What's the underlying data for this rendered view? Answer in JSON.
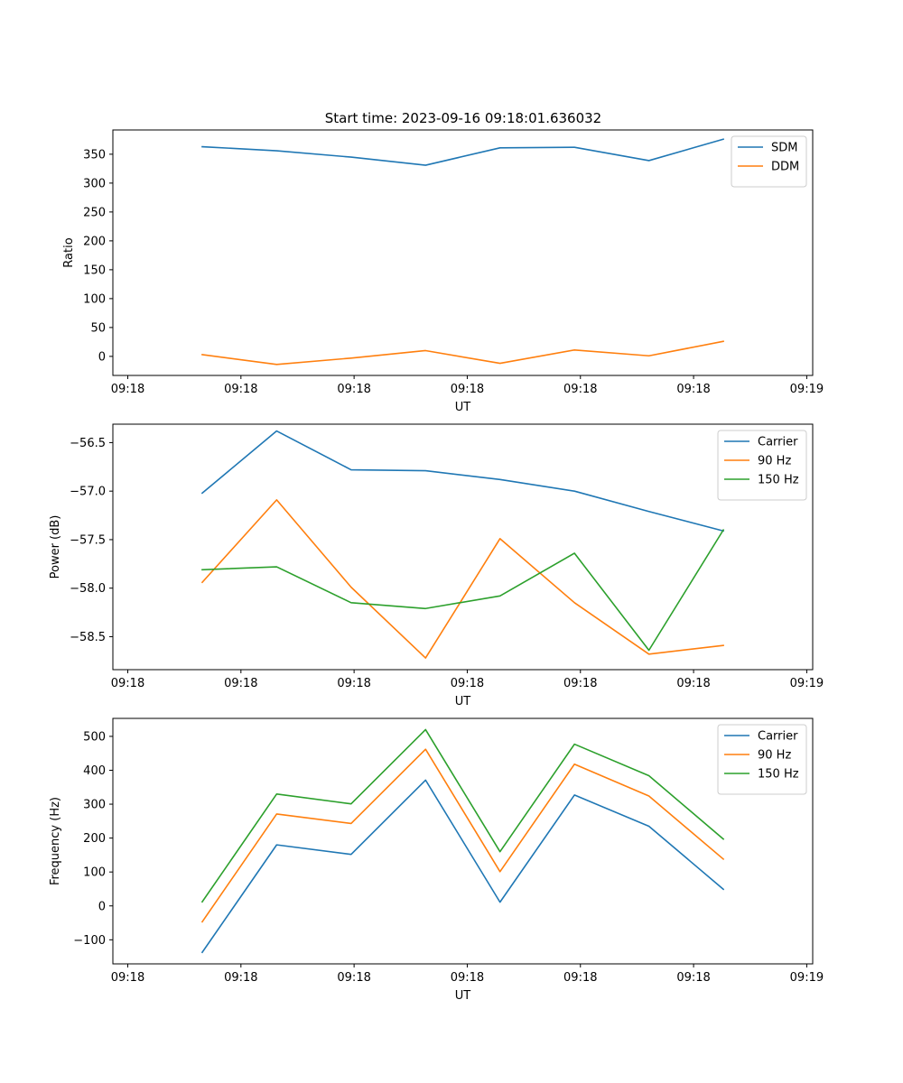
{
  "figure": {
    "title": "Start time: 2023-09-16 09:18:01.636032"
  },
  "colors": {
    "blue": "#1f77b4",
    "orange": "#ff7f0e",
    "green": "#2ca02c"
  },
  "chart_data": [
    {
      "type": "line",
      "id": "ratio",
      "title": "Start time: 2023-09-16 09:18:01.636032",
      "xlabel": "UT",
      "ylabel": "Ratio",
      "x": [
        0.5,
        1.0,
        1.5,
        2.0,
        2.5,
        3.0,
        3.5,
        4.0
      ],
      "xlim": [
        -0.1,
        4.6
      ],
      "xticks": [
        0,
        0.76,
        1.52,
        2.28,
        3.04,
        3.8,
        4.56
      ],
      "xtick_labels": [
        "09:18",
        "09:18",
        "09:18",
        "09:18",
        "09:18",
        "09:18",
        "09:19"
      ],
      "ylim": [
        -33,
        392
      ],
      "yticks": [
        0,
        50,
        100,
        150,
        200,
        250,
        300,
        350
      ],
      "ytick_labels": [
        "0",
        "50",
        "100",
        "150",
        "200",
        "250",
        "300",
        "350"
      ],
      "legend_position": "top-right",
      "series": [
        {
          "name": "SDM",
          "color": "#1f77b4",
          "values": [
            363,
            356,
            345,
            331,
            361,
            362,
            339,
            376
          ]
        },
        {
          "name": "DDM",
          "color": "#ff7f0e",
          "values": [
            3,
            -14,
            -3,
            10,
            -12,
            11,
            1,
            26
          ]
        }
      ]
    },
    {
      "type": "line",
      "id": "power",
      "xlabel": "UT",
      "ylabel": "Power (dB)",
      "x": [
        0.5,
        1.0,
        1.5,
        2.0,
        2.5,
        3.0,
        3.5,
        4.0
      ],
      "xlim": [
        -0.1,
        4.6
      ],
      "xticks": [
        0,
        0.76,
        1.52,
        2.28,
        3.04,
        3.8,
        4.56
      ],
      "xtick_labels": [
        "09:18",
        "09:18",
        "09:18",
        "09:18",
        "09:18",
        "09:18",
        "09:19"
      ],
      "ylim": [
        -58.84,
        -56.31
      ],
      "yticks": [
        -58.5,
        -58.0,
        -57.5,
        -57.0,
        -56.5
      ],
      "ytick_labels": [
        "−58.5",
        "−58.0",
        "−57.5",
        "−57.0",
        "−56.5"
      ],
      "legend_position": "top-right",
      "series": [
        {
          "name": "Carrier",
          "color": "#1f77b4",
          "values": [
            -57.02,
            -56.38,
            -56.78,
            -56.79,
            -56.88,
            -57.0,
            -57.21,
            -57.41
          ]
        },
        {
          "name": "90 Hz",
          "color": "#ff7f0e",
          "values": [
            -57.94,
            -57.09,
            -57.99,
            -58.72,
            -57.49,
            -58.15,
            -58.68,
            -58.59
          ]
        },
        {
          "name": "150 Hz",
          "color": "#2ca02c",
          "values": [
            -57.81,
            -57.78,
            -58.15,
            -58.21,
            -58.08,
            -57.64,
            -58.64,
            -57.4
          ]
        }
      ]
    },
    {
      "type": "line",
      "id": "frequency",
      "xlabel": "UT",
      "ylabel": "Frequency (Hz)",
      "x": [
        0.5,
        1.0,
        1.5,
        2.0,
        2.5,
        3.0,
        3.5,
        4.0
      ],
      "xlim": [
        -0.1,
        4.6
      ],
      "xticks": [
        0,
        0.76,
        1.52,
        2.28,
        3.04,
        3.8,
        4.56
      ],
      "xtick_labels": [
        "09:18",
        "09:18",
        "09:18",
        "09:18",
        "09:18",
        "09:18",
        "09:19"
      ],
      "ylim": [
        -171,
        553
      ],
      "yticks": [
        -100,
        0,
        100,
        200,
        300,
        400,
        500
      ],
      "ytick_labels": [
        "−100",
        "0",
        "100",
        "200",
        "300",
        "400",
        "500"
      ],
      "legend_position": "top-right",
      "series": [
        {
          "name": "Carrier",
          "color": "#1f77b4",
          "values": [
            -137,
            180,
            152,
            371,
            11,
            327,
            235,
            49
          ]
        },
        {
          "name": "90 Hz",
          "color": "#ff7f0e",
          "values": [
            -47,
            271,
            243,
            462,
            101,
            418,
            324,
            138
          ]
        },
        {
          "name": "150 Hz",
          "color": "#2ca02c",
          "values": [
            12,
            330,
            301,
            520,
            160,
            477,
            384,
            197
          ]
        }
      ]
    }
  ]
}
